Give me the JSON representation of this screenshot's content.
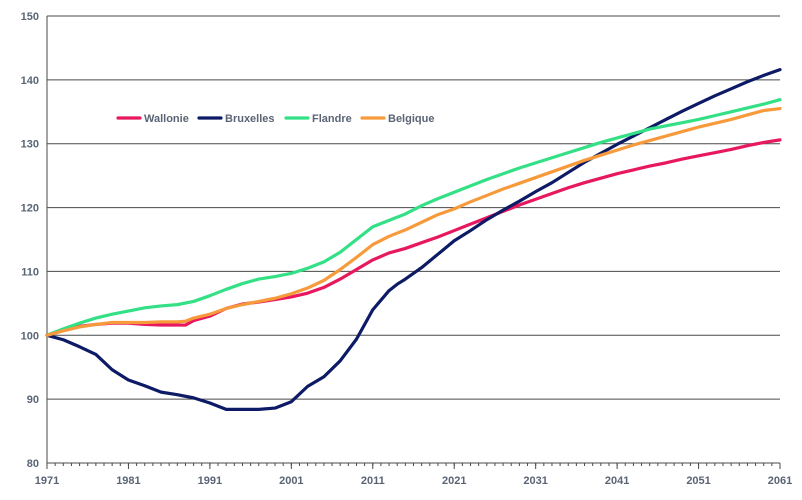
{
  "chart_data": {
    "type": "line",
    "title": "",
    "xlabel": "",
    "ylabel": "",
    "xlim": [
      1971,
      2061
    ],
    "ylim": [
      80,
      150
    ],
    "x_ticks": [
      1971,
      1981,
      1991,
      2001,
      2011,
      2021,
      2031,
      2041,
      2051,
      2061
    ],
    "y_ticks": [
      80,
      90,
      100,
      110,
      120,
      130,
      140,
      150
    ],
    "grid": "horizontal",
    "legend_position": "upper-left",
    "series": [
      {
        "name": "Wallonie",
        "color": "#e8185f",
        "x": [
          1971,
          1973,
          1975,
          1977,
          1979,
          1981,
          1983,
          1985,
          1987,
          1988,
          1989,
          1991,
          1993,
          1995,
          1997,
          1999,
          2001,
          2003,
          2005,
          2007,
          2009,
          2011,
          2013,
          2015,
          2017,
          2019,
          2021,
          2023,
          2025,
          2027,
          2029,
          2031,
          2033,
          2035,
          2037,
          2039,
          2041,
          2043,
          2045,
          2047,
          2049,
          2051,
          2053,
          2055,
          2057,
          2059,
          2061
        ],
        "values": [
          100,
          100.8,
          101.4,
          101.7,
          101.9,
          101.9,
          101.7,
          101.6,
          101.6,
          101.6,
          102.3,
          103.0,
          104.2,
          104.9,
          105.2,
          105.6,
          106.0,
          106.6,
          107.5,
          108.8,
          110.3,
          111.8,
          112.9,
          113.6,
          114.5,
          115.4,
          116.4,
          117.4,
          118.4,
          119.4,
          120.4,
          121.3,
          122.2,
          123.1,
          123.9,
          124.6,
          125.3,
          125.9,
          126.5,
          127.0,
          127.6,
          128.1,
          128.6,
          129.1,
          129.7,
          130.2,
          130.6
        ]
      },
      {
        "name": "Bruxelles",
        "color": "#0d1a66",
        "x": [
          1971,
          1973,
          1975,
          1977,
          1979,
          1981,
          1983,
          1985,
          1987,
          1989,
          1991,
          1993,
          1995,
          1997,
          1999,
          2001,
          2003,
          2005,
          2007,
          2009,
          2011,
          2012,
          2013,
          2014,
          2015,
          2017,
          2019,
          2021,
          2023,
          2025,
          2027,
          2029,
          2031,
          2033,
          2035,
          2037,
          2039,
          2041,
          2043,
          2045,
          2047,
          2049,
          2051,
          2053,
          2055,
          2057,
          2059,
          2061
        ],
        "values": [
          100,
          99.3,
          98.2,
          97.0,
          94.6,
          93.0,
          92.1,
          91.1,
          90.7,
          90.2,
          89.4,
          88.4,
          88.4,
          88.4,
          88.6,
          89.6,
          92.0,
          93.5,
          96.0,
          99.4,
          104.0,
          105.5,
          107.0,
          108.0,
          108.8,
          110.6,
          112.7,
          114.8,
          116.4,
          118.1,
          119.6,
          121.0,
          122.5,
          123.9,
          125.5,
          127.1,
          128.5,
          129.9,
          131.2,
          132.5,
          133.8,
          135.1,
          136.3,
          137.5,
          138.6,
          139.7,
          140.7,
          141.6
        ]
      },
      {
        "name": "Flandre",
        "color": "#33e086",
        "x": [
          1971,
          1973,
          1975,
          1977,
          1979,
          1981,
          1983,
          1985,
          1987,
          1989,
          1991,
          1993,
          1995,
          1997,
          1999,
          2001,
          2003,
          2005,
          2007,
          2009,
          2011,
          2013,
          2015,
          2017,
          2019,
          2021,
          2023,
          2025,
          2027,
          2029,
          2031,
          2033,
          2035,
          2037,
          2039,
          2041,
          2043,
          2045,
          2047,
          2049,
          2051,
          2053,
          2055,
          2057,
          2059,
          2061
        ],
        "values": [
          100,
          101.0,
          101.9,
          102.7,
          103.3,
          103.8,
          104.3,
          104.6,
          104.8,
          105.3,
          106.2,
          107.2,
          108.1,
          108.8,
          109.2,
          109.7,
          110.5,
          111.5,
          113.0,
          115.0,
          117.0,
          118.0,
          119.0,
          120.3,
          121.4,
          122.4,
          123.4,
          124.4,
          125.3,
          126.2,
          127.0,
          127.8,
          128.6,
          129.4,
          130.2,
          130.9,
          131.6,
          132.3,
          132.8,
          133.3,
          133.8,
          134.4,
          135.0,
          135.6,
          136.2,
          136.9
        ]
      },
      {
        "name": "Belgique",
        "color": "#f79a3c",
        "x": [
          1971,
          1973,
          1975,
          1977,
          1979,
          1981,
          1983,
          1985,
          1987,
          1988,
          1989,
          1991,
          1993,
          1995,
          1997,
          1999,
          2001,
          2003,
          2005,
          2007,
          2009,
          2011,
          2013,
          2015,
          2017,
          2019,
          2021,
          2023,
          2025,
          2027,
          2029,
          2031,
          2033,
          2035,
          2037,
          2039,
          2041,
          2043,
          2045,
          2047,
          2049,
          2051,
          2053,
          2055,
          2057,
          2059,
          2061
        ],
        "values": [
          100,
          100.7,
          101.3,
          101.7,
          102.0,
          102.0,
          102.0,
          102.1,
          102.1,
          102.2,
          102.7,
          103.3,
          104.2,
          104.8,
          105.3,
          105.8,
          106.5,
          107.4,
          108.6,
          110.3,
          112.2,
          114.2,
          115.5,
          116.5,
          117.7,
          118.9,
          119.8,
          120.9,
          121.9,
          122.9,
          123.8,
          124.7,
          125.6,
          126.5,
          127.4,
          128.2,
          129.0,
          129.8,
          130.5,
          131.2,
          131.9,
          132.6,
          133.2,
          133.8,
          134.5,
          135.2,
          135.5
        ]
      }
    ]
  }
}
